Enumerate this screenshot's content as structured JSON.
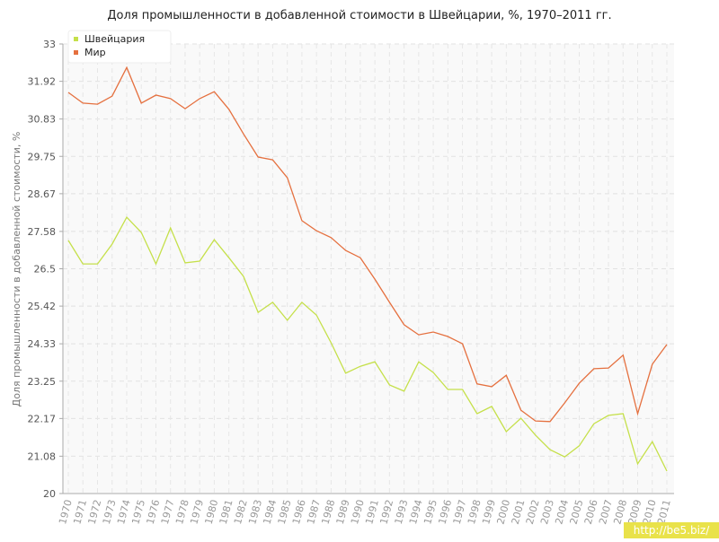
{
  "chart_data": {
    "type": "line",
    "title": "Доля промышленности в добавленной стоимости в Швейцарии, %, 1970–2011 гг.",
    "ylabel": "Доля промышленности в добавленной стоимости, %",
    "categories": [
      "1970",
      "1971",
      "1972",
      "1973",
      "1974",
      "1975",
      "1976",
      "1977",
      "1978",
      "1979",
      "1980",
      "1981",
      "1982",
      "1983",
      "1984",
      "1985",
      "1986",
      "1987",
      "1988",
      "1989",
      "1990",
      "1991",
      "1992",
      "1993",
      "1994",
      "1995",
      "1996",
      "1997",
      "1998",
      "1999",
      "2000",
      "2001",
      "2002",
      "2003",
      "2004",
      "2005",
      "2006",
      "2007",
      "2008",
      "2009",
      "2010",
      "2011"
    ],
    "series": [
      {
        "name": "Швейцария",
        "color": "#c5e04a",
        "values": [
          27.32,
          26.64,
          26.64,
          27.21,
          27.99,
          27.55,
          26.64,
          27.68,
          26.67,
          26.72,
          27.34,
          26.82,
          26.28,
          25.24,
          25.53,
          25.01,
          25.53,
          25.16,
          24.36,
          23.48,
          23.68,
          23.81,
          23.14,
          22.96,
          23.81,
          23.5,
          23.01,
          23.01,
          22.31,
          22.52,
          21.79,
          22.18,
          21.69,
          21.27,
          21.06,
          21.38,
          22.02,
          22.26,
          22.31,
          20.86,
          21.5,
          20.65
        ]
      },
      {
        "name": "Мир",
        "color": "#e5703f",
        "values": [
          31.6,
          31.29,
          31.26,
          31.49,
          32.32,
          31.29,
          31.52,
          31.42,
          31.13,
          31.42,
          31.62,
          31.11,
          30.4,
          29.73,
          29.65,
          29.13,
          27.89,
          27.6,
          27.4,
          27.03,
          26.82,
          26.2,
          25.53,
          24.88,
          24.59,
          24.67,
          24.54,
          24.33,
          23.17,
          23.09,
          23.42,
          22.41,
          22.1,
          22.08,
          22.62,
          23.19,
          23.61,
          23.63,
          24.0,
          22.31,
          23.74,
          24.31
        ]
      }
    ],
    "ylim": [
      20,
      33
    ],
    "yticks": [
      20,
      21.08,
      22.17,
      23.25,
      24.33,
      25.42,
      26.5,
      27.58,
      28.67,
      29.75,
      30.83,
      31.92,
      33
    ],
    "grid": true,
    "legend": "upper left",
    "watermark": "http://be5.biz/"
  }
}
